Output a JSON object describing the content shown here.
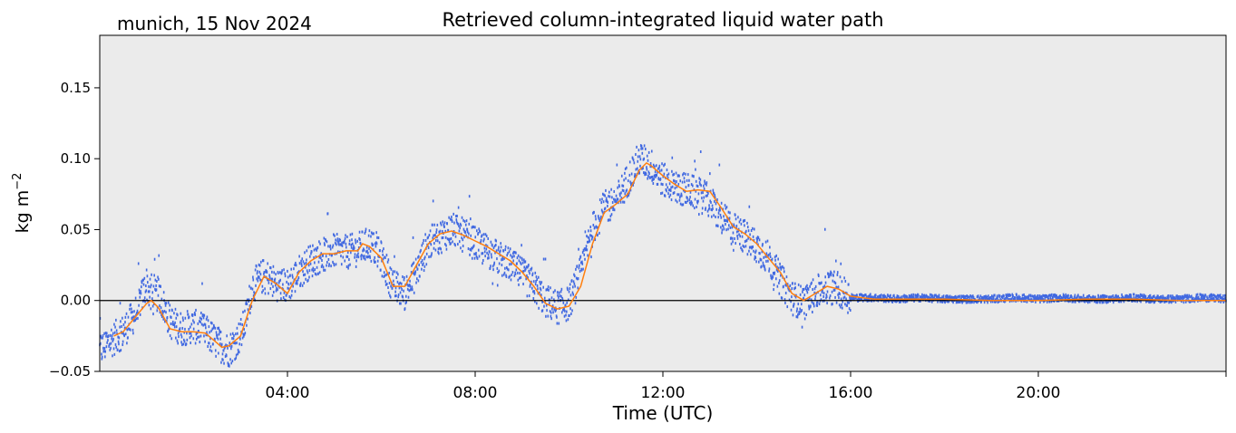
{
  "chart_data": {
    "type": "scatter",
    "title": "Retrieved column-integrated liquid water path",
    "subtitle": "munich, 15 Nov 2024",
    "xlabel": "Time (UTC)",
    "ylabel_base": "kg m",
    "ylabel_exp": "−2",
    "xlim": [
      0,
      24
    ],
    "ylim": [
      -0.05,
      0.187
    ],
    "x_ticks": [
      {
        "value": 4,
        "label": "04:00"
      },
      {
        "value": 8,
        "label": "08:00"
      },
      {
        "value": 12,
        "label": "12:00"
      },
      {
        "value": 16,
        "label": "16:00"
      },
      {
        "value": 20,
        "label": "20:00"
      }
    ],
    "y_ticks": [
      {
        "value": -0.05,
        "label": "−0.05"
      },
      {
        "value": 0.0,
        "label": "0.00"
      },
      {
        "value": 0.05,
        "label": "0.05"
      },
      {
        "value": 0.1,
        "label": "0.10"
      },
      {
        "value": 0.15,
        "label": "0.15"
      }
    ],
    "zero_line": 0.0,
    "colors": {
      "background": "#ebebeb",
      "raw": "#4169e1",
      "smoothed": "#ff7f0e"
    },
    "series": [
      {
        "kind": "raw-scatter",
        "x": [
          0.0,
          0.25,
          0.5,
          0.75,
          1.0,
          1.1,
          1.25,
          1.5,
          1.75,
          2.0,
          2.25,
          2.5,
          2.75,
          3.0,
          3.1,
          3.25,
          3.5,
          3.75,
          4.0,
          4.25,
          4.5,
          4.75,
          5.0,
          5.25,
          5.5,
          5.75,
          6.0,
          6.25,
          6.5,
          6.75,
          7.0,
          7.25,
          7.5,
          7.75,
          8.0,
          8.25,
          8.5,
          8.75,
          9.0,
          9.25,
          9.5,
          9.75,
          10.0,
          10.25,
          10.5,
          10.75,
          11.0,
          11.25,
          11.5,
          11.75,
          12.0,
          12.25,
          12.5,
          12.75,
          13.0,
          13.25,
          13.5,
          13.75,
          14.0,
          14.25,
          14.5,
          14.75,
          15.0,
          15.25,
          15.5,
          15.75,
          16.0,
          16.5,
          17.0,
          17.5,
          18.0,
          18.5,
          19.0,
          19.5,
          20.0,
          20.5,
          21.0,
          21.5,
          22.0,
          22.5,
          23.0,
          23.5,
          24.0
        ],
        "y": [
          -0.035,
          -0.028,
          -0.022,
          -0.01,
          0.012,
          0.0,
          0.005,
          -0.015,
          -0.02,
          -0.018,
          -0.022,
          -0.03,
          -0.035,
          -0.025,
          -0.015,
          0.01,
          0.018,
          0.012,
          0.01,
          0.02,
          0.028,
          0.032,
          0.035,
          0.034,
          0.036,
          0.04,
          0.03,
          0.01,
          0.005,
          0.02,
          0.04,
          0.045,
          0.05,
          0.046,
          0.04,
          0.035,
          0.03,
          0.025,
          0.018,
          0.01,
          0.0,
          -0.005,
          -0.002,
          0.02,
          0.05,
          0.065,
          0.07,
          0.085,
          0.1,
          0.095,
          0.085,
          0.08,
          0.078,
          0.075,
          0.07,
          0.058,
          0.05,
          0.045,
          0.038,
          0.03,
          0.015,
          0.002,
          -0.002,
          0.005,
          0.01,
          0.008,
          0.002,
          0.002,
          0.001,
          0.002,
          0.001,
          0.001,
          0.001,
          0.002,
          0.001,
          0.002,
          0.001,
          0.001,
          0.002,
          0.001,
          0.001,
          0.002,
          0.001
        ]
      },
      {
        "kind": "smoothed-line",
        "x": [
          0.3,
          0.5,
          0.75,
          1.0,
          1.1,
          1.25,
          1.5,
          1.75,
          2.0,
          2.25,
          2.5,
          2.6,
          2.75,
          3.0,
          3.25,
          3.5,
          3.75,
          4.0,
          4.25,
          4.5,
          4.75,
          5.0,
          5.25,
          5.5,
          5.6,
          5.75,
          6.0,
          6.25,
          6.5,
          6.75,
          7.0,
          7.25,
          7.5,
          7.75,
          8.0,
          8.25,
          8.5,
          8.75,
          9.0,
          9.25,
          9.5,
          9.75,
          10.0,
          10.25,
          10.5,
          10.75,
          11.0,
          11.25,
          11.5,
          11.65,
          11.75,
          12.0,
          12.25,
          12.5,
          12.75,
          13.0,
          13.25,
          13.5,
          13.75,
          14.0,
          14.25,
          14.5,
          14.75,
          15.0,
          15.25,
          15.5,
          15.75,
          16.0,
          16.5,
          17.0,
          18.0,
          19.0,
          20.0,
          21.0,
          22.0,
          23.0,
          24.0
        ],
        "y": [
          -0.025,
          -0.022,
          -0.012,
          -0.002,
          0.0,
          -0.005,
          -0.02,
          -0.022,
          -0.022,
          -0.023,
          -0.03,
          -0.033,
          -0.032,
          -0.025,
          0.0,
          0.017,
          0.012,
          0.005,
          0.02,
          0.028,
          0.033,
          0.033,
          0.035,
          0.035,
          0.04,
          0.038,
          0.03,
          0.01,
          0.01,
          0.025,
          0.04,
          0.047,
          0.049,
          0.046,
          0.042,
          0.038,
          0.033,
          0.028,
          0.02,
          0.01,
          -0.002,
          -0.006,
          -0.004,
          0.01,
          0.04,
          0.062,
          0.068,
          0.075,
          0.092,
          0.097,
          0.095,
          0.088,
          0.082,
          0.077,
          0.078,
          0.077,
          0.065,
          0.052,
          0.047,
          0.04,
          0.03,
          0.02,
          0.005,
          0.0,
          0.005,
          0.01,
          0.008,
          0.003,
          0.001,
          0.001,
          0.001,
          0.0,
          0.0,
          0.001,
          0.001,
          0.0,
          0.0
        ]
      }
    ]
  }
}
